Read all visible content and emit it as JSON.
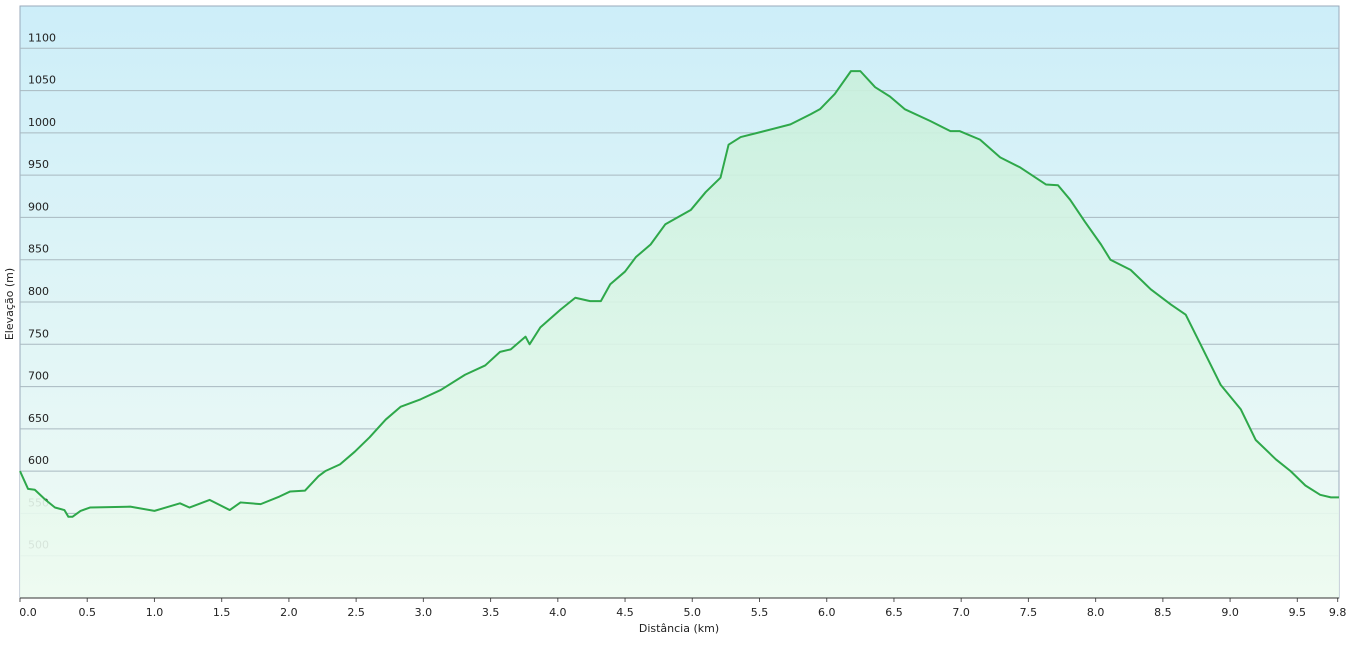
{
  "chart_data": {
    "type": "area",
    "x_label": "Distância  (km)",
    "y_label": "Elevação (m)",
    "x": [
      0,
      0.06,
      0.11,
      0.19,
      0.26,
      0.33,
      0.36,
      0.39,
      0.45,
      0.52,
      0.82,
      1.0,
      1.19,
      1.26,
      1.41,
      1.56,
      1.64,
      1.79,
      1.93,
      2.01,
      2.12,
      2.22,
      2.27,
      2.38,
      2.49,
      2.6,
      2.72,
      2.83,
      2.98,
      3.13,
      3.31,
      3.46,
      3.57,
      3.65,
      3.76,
      3.79,
      3.87,
      4.02,
      4.13,
      4.24,
      4.32,
      4.39,
      4.5,
      4.58,
      4.69,
      4.8,
      4.99,
      5.1,
      5.21,
      5.27,
      5.36,
      5.51,
      5.73,
      5.88,
      5.95,
      6.06,
      6.18,
      6.25,
      6.36,
      6.47,
      6.58,
      6.77,
      6.92,
      6.99,
      7.14,
      7.29,
      7.44,
      7.63,
      7.72,
      7.81,
      7.92,
      8.04,
      8.11,
      8.26,
      8.41,
      8.56,
      8.67,
      8.78,
      8.93,
      9.08,
      9.19,
      9.34,
      9.45,
      9.56,
      9.67,
      9.75,
      9.81
    ],
    "series": [
      {
        "color": "#2ea84a",
        "values": [
          600,
          579,
          578,
          566,
          557,
          554,
          546,
          546,
          553,
          557,
          558,
          553,
          562,
          557,
          566,
          554,
          563,
          561,
          570,
          576,
          577,
          594,
          600,
          608,
          623,
          640,
          661,
          676,
          685,
          696,
          714,
          725,
          741,
          744,
          759,
          750,
          770,
          791,
          805,
          801,
          801,
          821,
          836,
          853,
          868,
          892,
          909,
          930,
          947,
          986,
          995,
          1001,
          1010,
          1022,
          1028,
          1046,
          1073,
          1073,
          1054,
          1043,
          1028,
          1014,
          1002,
          1002,
          992,
          971,
          959,
          939,
          938,
          921,
          895,
          868,
          850,
          838,
          815,
          797,
          785,
          750,
          702,
          673,
          637,
          614,
          600,
          583,
          572,
          569,
          569
        ]
      }
    ],
    "xlim": [
      0,
      9.81
    ],
    "ylim": [
      450,
      1150
    ],
    "xticks": [
      {
        "value": 0,
        "label": "0.0"
      },
      0.5,
      {
        "value": 1,
        "label": "1.0"
      },
      1.5,
      {
        "value": 2,
        "label": "2.0"
      },
      2.5,
      {
        "value": 3,
        "label": "3.0"
      },
      3.5,
      {
        "value": 4,
        "label": "4.0"
      },
      4.5,
      {
        "value": 5,
        "label": "5.0"
      },
      5.5,
      {
        "value": 6,
        "label": "6.0"
      },
      6.5,
      {
        "value": 7,
        "label": "7.0"
      },
      7.5,
      {
        "value": 8,
        "label": "8.0"
      },
      8.5,
      {
        "value": 9,
        "label": "9.0"
      },
      9.5,
      9.8
    ],
    "yticks": [
      500,
      550,
      600,
      650,
      700,
      750,
      800,
      850,
      900,
      950,
      1000,
      1050,
      1100
    ],
    "grid": true
  }
}
